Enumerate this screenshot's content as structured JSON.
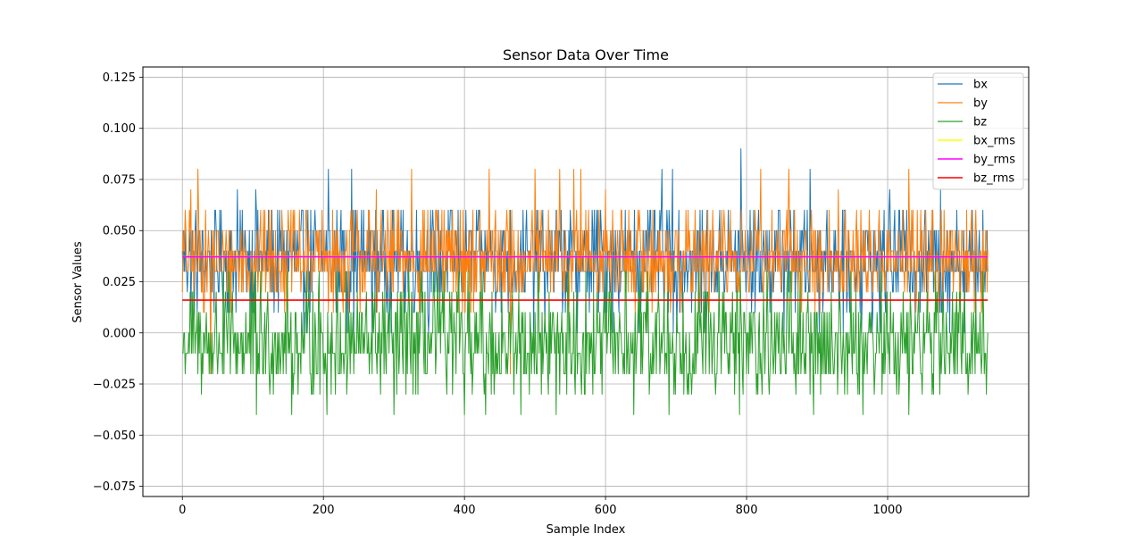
{
  "chart_data": {
    "type": "line",
    "title": "Sensor Data Over Time",
    "xlabel": "Sample Index",
    "ylabel": "Sensor Values",
    "xlim": [
      -56,
      1200
    ],
    "ylim": [
      -0.08,
      0.13
    ],
    "xticks": [
      0,
      200,
      400,
      600,
      800,
      1000
    ],
    "xtick_labels": [
      "0",
      "200",
      "400",
      "600",
      "800",
      "1000"
    ],
    "yticks": [
      -0.075,
      -0.05,
      -0.025,
      0.0,
      0.025,
      0.05,
      0.075,
      0.1,
      0.125
    ],
    "ytick_labels": [
      "−0.075",
      "−0.050",
      "−0.025",
      "0.000",
      "0.025",
      "0.050",
      "0.075",
      "0.100",
      "0.125"
    ],
    "grid": true,
    "legend_position": "top-right",
    "sample_count": 1143,
    "series": [
      {
        "name": "bx",
        "color": "#1f77b4",
        "kind": "noisy",
        "levels": [
          0.0,
          0.01,
          0.02,
          0.03,
          0.04,
          0.05,
          0.06
        ],
        "weights": [
          2,
          5,
          12,
          25,
          25,
          18,
          8
        ],
        "peaks": [
          [
            207,
            0.08
          ],
          [
            240,
            0.08
          ],
          [
            680,
            0.08
          ],
          [
            695,
            0.08
          ],
          [
            792,
            0.09
          ],
          [
            890,
            0.08
          ],
          [
            1003,
            0.07
          ],
          [
            1075,
            0.07
          ],
          [
            104,
            0.07
          ],
          [
            78,
            0.07
          ]
        ]
      },
      {
        "name": "by",
        "color": "#ff7f0e",
        "kind": "noisy",
        "levels": [
          0.01,
          0.02,
          0.03,
          0.04,
          0.05,
          0.06
        ],
        "weights": [
          4,
          15,
          28,
          28,
          17,
          8
        ],
        "peaks": [
          [
            22,
            0.08
          ],
          [
            325,
            0.08
          ],
          [
            435,
            0.08
          ],
          [
            500,
            0.08
          ],
          [
            535,
            0.08
          ],
          [
            555,
            0.08
          ],
          [
            565,
            0.08
          ],
          [
            820,
            0.08
          ],
          [
            860,
            0.08
          ],
          [
            1030,
            0.08
          ],
          [
            12,
            0.07
          ],
          [
            275,
            0.07
          ],
          [
            600,
            0.07
          ],
          [
            930,
            0.07
          ],
          [
            40,
            -0.02
          ],
          [
            465,
            -0.02
          ]
        ]
      },
      {
        "name": "bz",
        "color": "#2ca02c",
        "kind": "noisy",
        "levels": [
          -0.03,
          -0.02,
          -0.01,
          0.0,
          0.01,
          0.02,
          0.03
        ],
        "weights": [
          6,
          20,
          25,
          22,
          15,
          9,
          3
        ],
        "peaks": [
          [
            105,
            -0.04
          ],
          [
            155,
            -0.04
          ],
          [
            205,
            -0.04
          ],
          [
            300,
            -0.04
          ],
          [
            400,
            -0.04
          ],
          [
            430,
            -0.04
          ],
          [
            480,
            -0.04
          ],
          [
            530,
            -0.04
          ],
          [
            640,
            -0.04
          ],
          [
            690,
            -0.04
          ],
          [
            790,
            -0.04
          ],
          [
            895,
            -0.04
          ],
          [
            965,
            -0.04
          ],
          [
            1030,
            -0.04
          ]
        ]
      },
      {
        "name": "bx_rms",
        "color": "#ffff00",
        "kind": "constant",
        "value": 0.0373
      },
      {
        "name": "by_rms",
        "color": "#ff00ff",
        "kind": "constant",
        "value": 0.0372
      },
      {
        "name": "bz_rms",
        "color": "#ff0000",
        "kind": "constant",
        "value": 0.016
      }
    ]
  }
}
